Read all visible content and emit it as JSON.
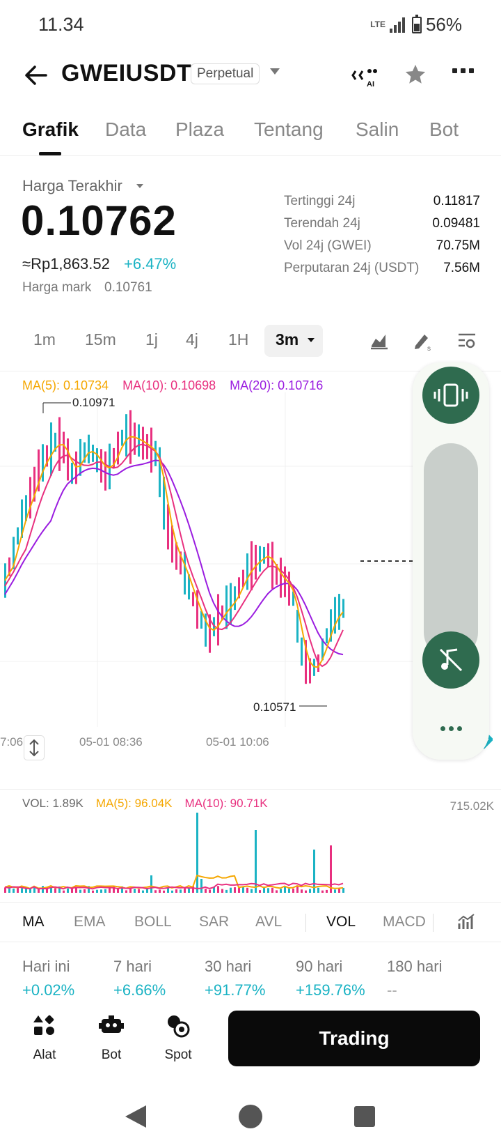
{
  "status_bar": {
    "time": "11.34",
    "network": "LTE",
    "battery": "56%"
  },
  "header": {
    "pair": "GWEIUSDT",
    "badge": "Perpetual"
  },
  "tabs": [
    "Grafik",
    "Data",
    "Plaza",
    "Tentang",
    "Salin",
    "Bot"
  ],
  "price": {
    "last_label": "Harga Terakhir",
    "last_price": "0.10762",
    "fiat": "≈Rp1,863.52",
    "change": "+6.47%",
    "mark_label": "Harga mark",
    "mark_value": "0.10761"
  },
  "stats": [
    {
      "label": "Tertinggi 24j",
      "value": "0.11817"
    },
    {
      "label": "Terendah 24j",
      "value": "0.09481"
    },
    {
      "label": "Vol 24j (GWEI)",
      "value": "70.75M"
    },
    {
      "label": "Perputaran 24j (USDT)",
      "value": "7.56M"
    }
  ],
  "intervals": [
    "1m",
    "15m",
    "1j",
    "4j",
    "1H",
    "3m"
  ],
  "chart": {
    "ma5": "MA(5): 0.10734",
    "ma10": "MA(10): 0.10698",
    "ma20": "MA(20): 0.10716",
    "high_label": "0.10971",
    "low_label": "0.10571",
    "x_labels": [
      "7:06",
      "05-01 08:36",
      "05-01 10:06"
    ],
    "colors": {
      "up": "#1bb3c4",
      "down": "#e8307f",
      "ma5": "#f5a700",
      "ma10": "#e8307f",
      "ma20": "#9a1ce0"
    }
  },
  "volume": {
    "vol": "VOL: 1.89K",
    "ma5": "MA(5): 96.04K",
    "ma10": "MA(10): 90.71K",
    "max": "715.02K"
  },
  "indicators": [
    "MA",
    "EMA",
    "BOLL",
    "SAR",
    "AVL",
    "VOL",
    "MACD"
  ],
  "performance": [
    {
      "label": "Hari ini",
      "value": "+0.02%"
    },
    {
      "label": "7 hari",
      "value": "+6.66%"
    },
    {
      "label": "30 hari",
      "value": "+91.77%"
    },
    {
      "label": "90 hari",
      "value": "+159.76%"
    },
    {
      "label": "180 hari",
      "value": "--"
    }
  ],
  "actions": [
    {
      "label": "Alat",
      "icon": "tools-icon"
    },
    {
      "label": "Bot",
      "icon": "bot-icon"
    },
    {
      "label": "Spot",
      "icon": "spot-icon"
    }
  ],
  "trade_button": "Trading"
}
